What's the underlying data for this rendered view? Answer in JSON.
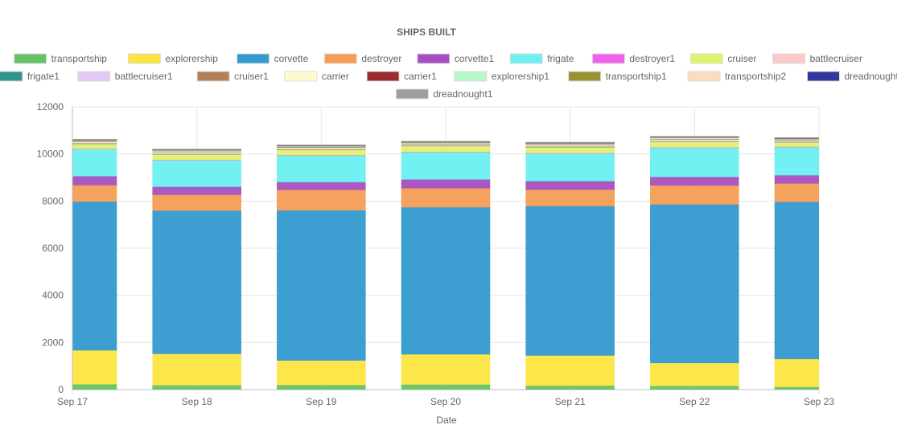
{
  "chart_data": {
    "type": "bar",
    "stacked": true,
    "title": "SHIPS BUILT",
    "xlabel": "Date",
    "ylabel": "",
    "ylim": [
      0,
      12000
    ],
    "y_ticks": [
      "0",
      "2000",
      "4000",
      "6000",
      "8000",
      "10000",
      "12000"
    ],
    "categories": [
      "Sep 17",
      "Sep 18",
      "Sep 19",
      "Sep 20",
      "Sep 21",
      "Sep 22",
      "Sep 23"
    ],
    "grid": true,
    "legend_position": "top",
    "series": [
      {
        "name": "transportship",
        "color": "#66c266",
        "values": [
          230,
          190,
          200,
          220,
          170,
          160,
          120
        ]
      },
      {
        "name": "explorership",
        "color": "#fde540",
        "values": [
          1440,
          1330,
          1040,
          1280,
          1280,
          970,
          1180
        ]
      },
      {
        "name": "corvette",
        "color": "#3399cf",
        "values": [
          6310,
          6080,
          6370,
          6240,
          6340,
          6730,
          6670
        ]
      },
      {
        "name": "destroyer",
        "color": "#f59d56",
        "values": [
          700,
          670,
          870,
          810,
          700,
          810,
          780
        ]
      },
      {
        "name": "corvette1",
        "color": "#a64fbf",
        "values": [
          380,
          340,
          330,
          370,
          360,
          360,
          350
        ]
      },
      {
        "name": "frigate",
        "color": "#6ceff0",
        "values": [
          1150,
          1130,
          1130,
          1160,
          1180,
          1240,
          1200
        ]
      },
      {
        "name": "destroyer1",
        "color": "#f261ea",
        "values": [
          10,
          10,
          10,
          10,
          10,
          10,
          10
        ]
      },
      {
        "name": "cruiser",
        "color": "#def26e",
        "values": [
          200,
          220,
          230,
          240,
          240,
          230,
          180
        ]
      },
      {
        "name": "battlecruiser",
        "color": "#fccaca",
        "values": [
          10,
          10,
          10,
          10,
          10,
          10,
          10
        ]
      },
      {
        "name": "frigate1",
        "color": "#2f968c",
        "values": [
          20,
          20,
          20,
          20,
          20,
          20,
          20
        ]
      },
      {
        "name": "battlecruiser1",
        "color": "#e4c8f8",
        "values": [
          10,
          10,
          10,
          10,
          10,
          10,
          10
        ]
      },
      {
        "name": "cruiser1",
        "color": "#b58058",
        "values": [
          10,
          10,
          10,
          10,
          10,
          10,
          10
        ]
      },
      {
        "name": "carrier",
        "color": "#fefad0",
        "values": [
          60,
          80,
          60,
          60,
          70,
          80,
          60
        ]
      },
      {
        "name": "carrier1",
        "color": "#9a2b2f",
        "values": [
          5,
          5,
          5,
          5,
          5,
          5,
          5
        ]
      },
      {
        "name": "explorership1",
        "color": "#b7f8c9",
        "values": [
          30,
          40,
          30,
          30,
          30,
          40,
          30
        ]
      },
      {
        "name": "transportship1",
        "color": "#979232",
        "values": [
          20,
          20,
          20,
          20,
          20,
          20,
          20
        ]
      },
      {
        "name": "transportship2",
        "color": "#fcdcbc",
        "values": [
          20,
          20,
          20,
          20,
          20,
          20,
          20
        ]
      },
      {
        "name": "dreadnought",
        "color": "#34379c",
        "values": [
          5,
          5,
          5,
          5,
          5,
          5,
          5
        ]
      },
      {
        "name": "dreadnought1",
        "color": "#9e9e9e",
        "values": [
          20,
          20,
          20,
          20,
          20,
          20,
          20
        ]
      }
    ]
  }
}
